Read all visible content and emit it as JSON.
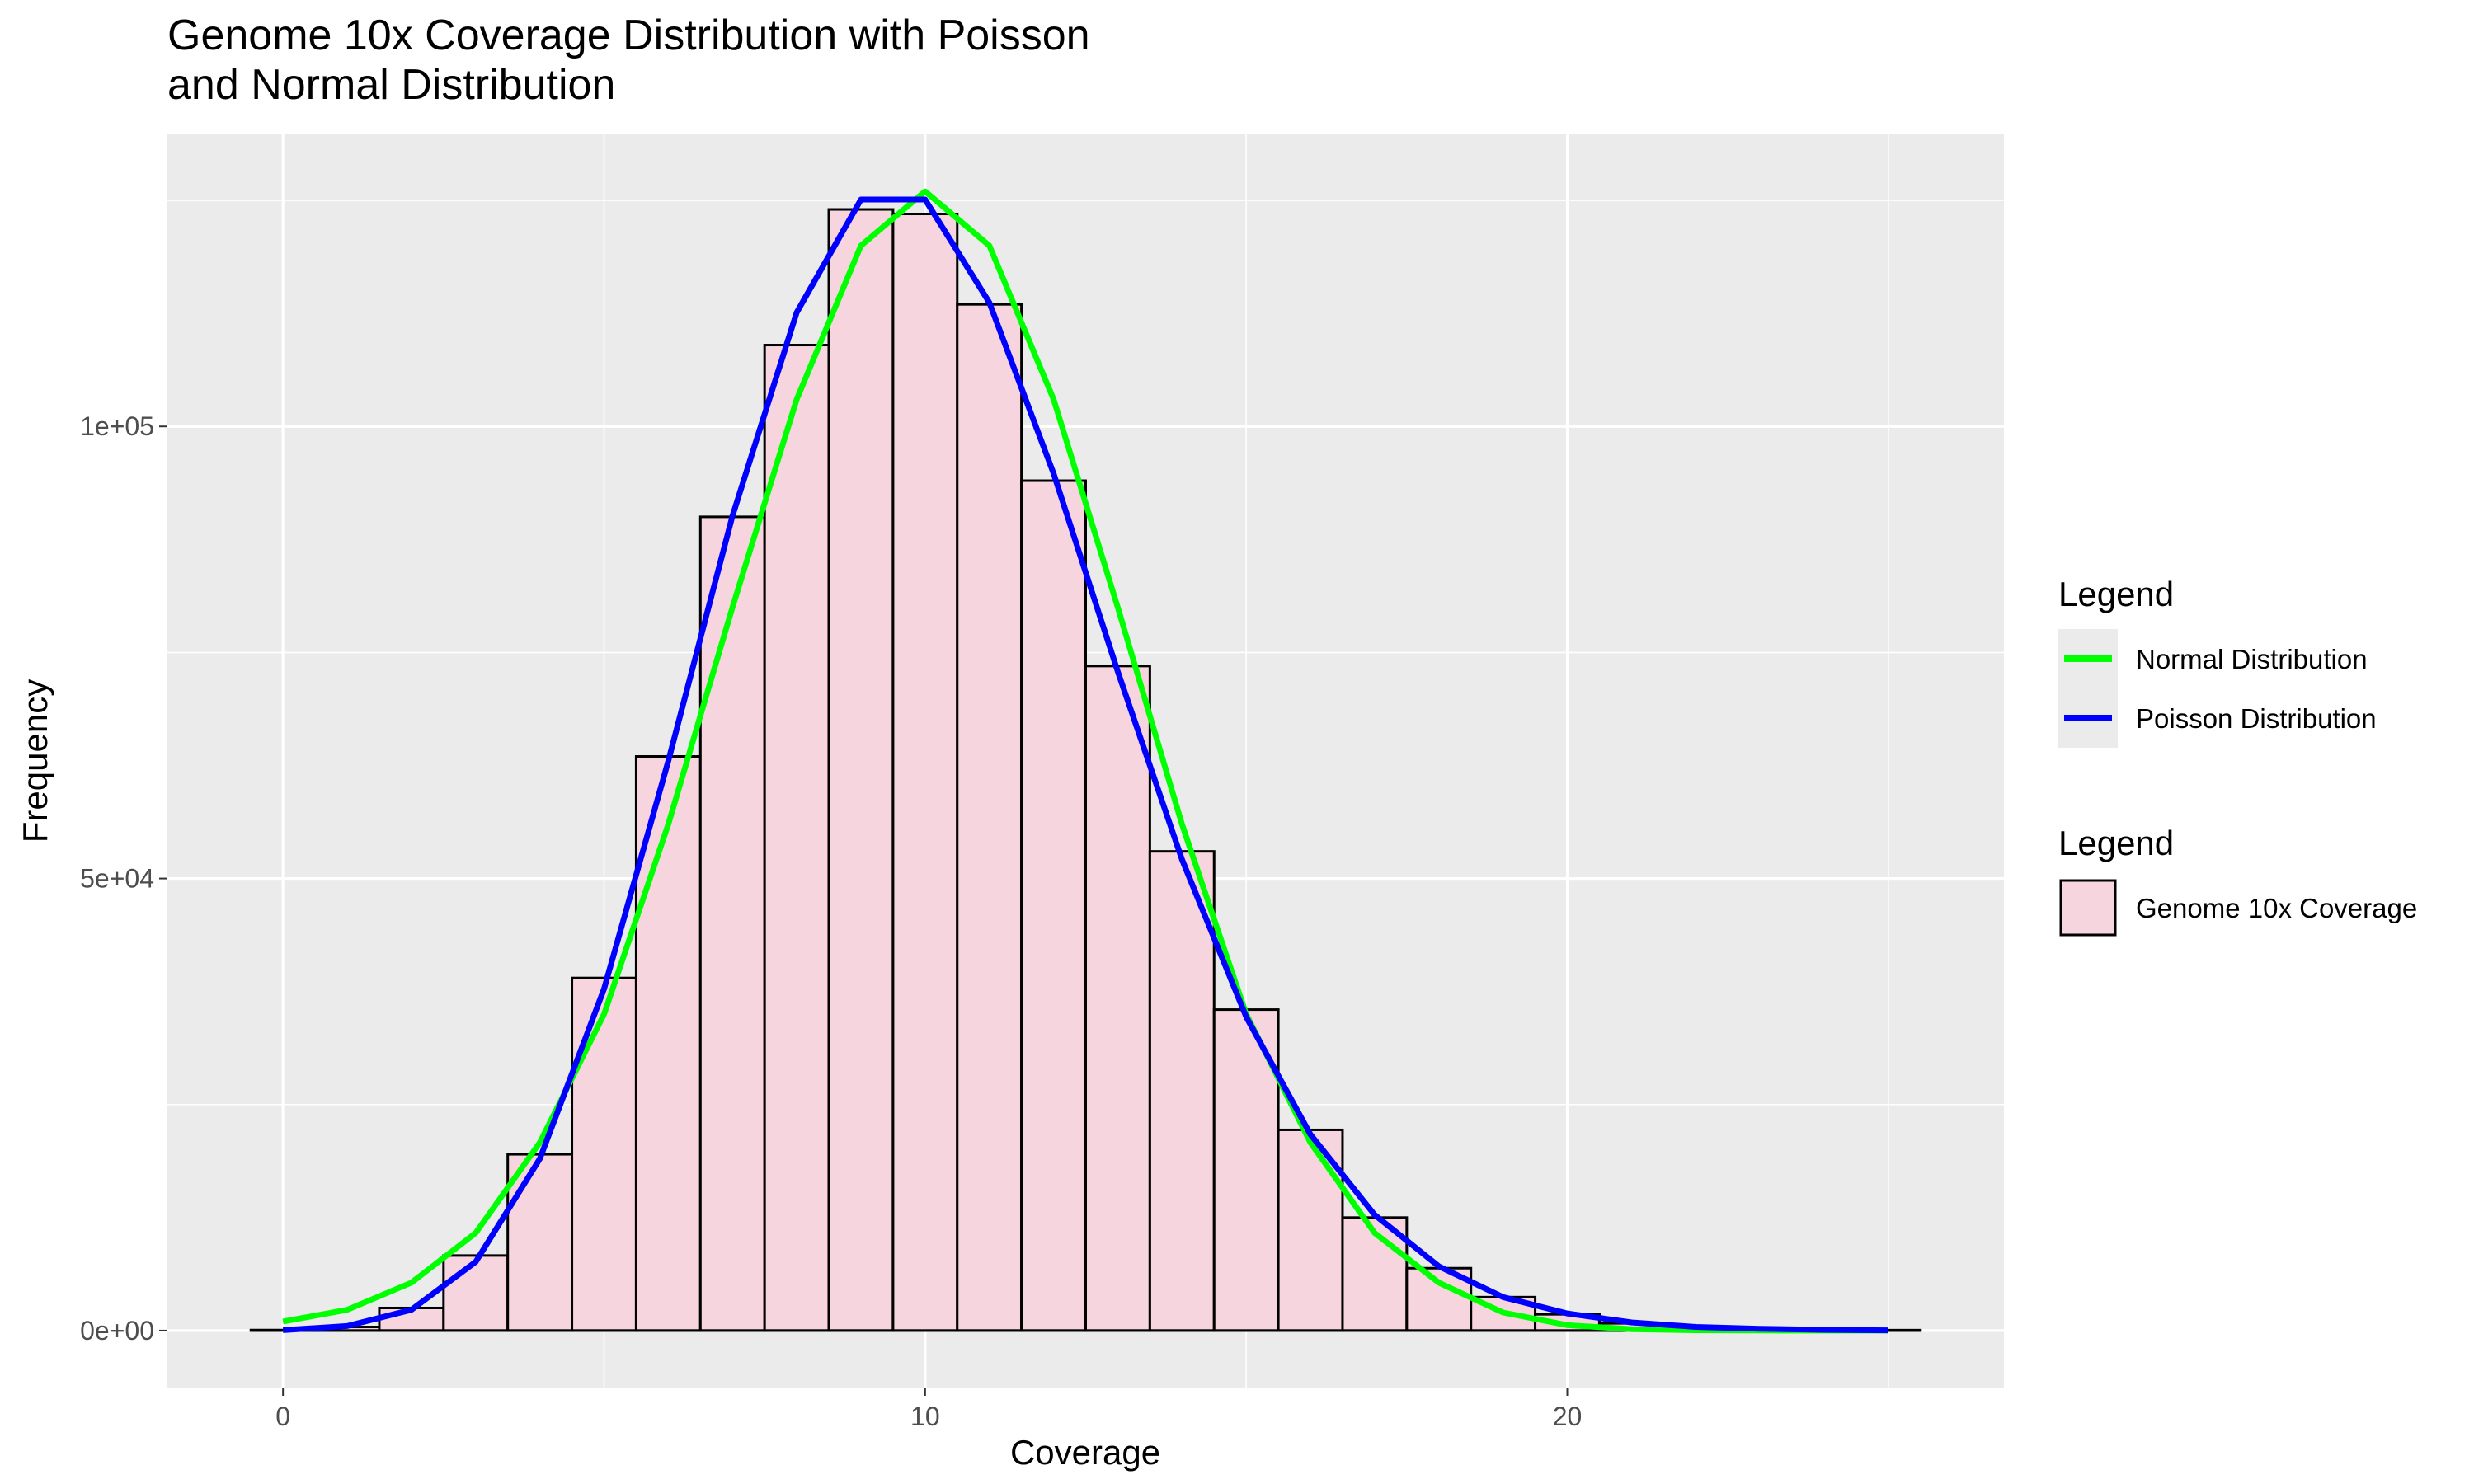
{
  "title_line1": "Genome 10x Coverage Distribution with Poisson",
  "title_line2": " and Normal Distribution",
  "colors": {
    "panel_bg": "#ebebeb",
    "grid": "#ffffff",
    "bar_fill": "#f7d5de",
    "bar_stroke": "#000000",
    "normal_line": "#00ff00",
    "poisson_line": "#0000ff",
    "tick_text": "#4d4d4d"
  },
  "legend_lines": {
    "title": "Legend",
    "items": [
      {
        "label": "Normal Distribution",
        "color": "#00ff00"
      },
      {
        "label": "Poisson Distribution",
        "color": "#0000ff"
      }
    ]
  },
  "legend_fill": {
    "title": "Legend",
    "items": [
      {
        "label": "Genome 10x Coverage",
        "color": "#f7d5de"
      }
    ]
  },
  "chart_data": {
    "type": "bar",
    "title": "Genome 10x Coverage Distribution with Poisson\n and Normal Distribution",
    "xlabel": "Coverage",
    "ylabel": "Frequency",
    "xlim": [
      -1.8,
      26.8
    ],
    "ylim": [
      -6300,
      132300
    ],
    "x_ticks": [
      0,
      10,
      20
    ],
    "x_tick_labels": [
      "0",
      "10",
      "20"
    ],
    "y_ticks": [
      0,
      50000,
      100000
    ],
    "y_tick_labels": [
      "0e+00",
      "5e+04",
      "1e+05"
    ],
    "grid": true,
    "legend_position": "right",
    "histogram": {
      "name": "Genome 10x Coverage",
      "bin_width": 1,
      "x": [
        0,
        1,
        2,
        3,
        4,
        5,
        6,
        7,
        8,
        9,
        10,
        11,
        12,
        13,
        14,
        15,
        16,
        17,
        18,
        19,
        20,
        21,
        22,
        23,
        24,
        25
      ],
      "values": [
        60,
        400,
        2500,
        8300,
        19500,
        39000,
        63500,
        90000,
        109000,
        124000,
        123500,
        113500,
        94000,
        73500,
        53000,
        35500,
        22200,
        12500,
        6900,
        3700,
        1800,
        800,
        350,
        150,
        70,
        50
      ]
    },
    "series": [
      {
        "name": "Normal Distribution",
        "x": [
          0,
          1,
          2,
          3,
          4,
          5,
          6,
          7,
          8,
          9,
          10,
          11,
          12,
          13,
          14,
          15,
          16,
          17,
          18,
          19,
          20,
          21,
          22,
          23,
          24,
          25
        ],
        "values": [
          1000,
          2300,
          5300,
          10800,
          20800,
          35000,
          56000,
          80000,
          103000,
          120000,
          126000,
          120000,
          103000,
          80000,
          56000,
          35000,
          20800,
          10800,
          5300,
          2000,
          600,
          150,
          40,
          10,
          2,
          0
        ]
      },
      {
        "name": "Poisson Distribution",
        "x": [
          0,
          1,
          2,
          3,
          4,
          5,
          6,
          7,
          8,
          9,
          10,
          11,
          12,
          13,
          14,
          15,
          16,
          17,
          18,
          19,
          20,
          21,
          22,
          23,
          24,
          25
        ],
        "values": [
          50,
          500,
          2300,
          7600,
          19000,
          37800,
          63000,
          90100,
          112600,
          125100,
          125100,
          113700,
          94800,
          72900,
          52100,
          34700,
          21700,
          12800,
          7100,
          3700,
          1900,
          900,
          400,
          200,
          80,
          30
        ]
      }
    ]
  }
}
